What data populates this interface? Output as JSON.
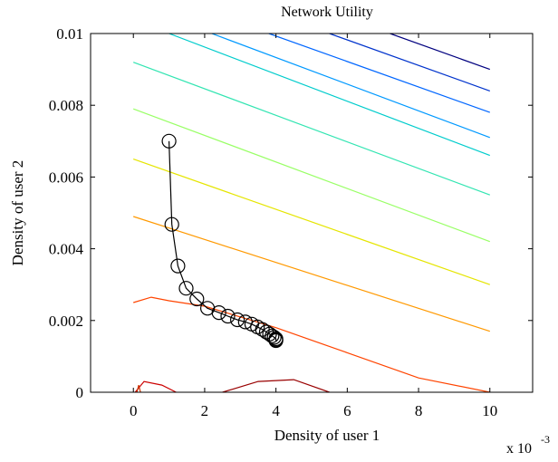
{
  "chart_data": {
    "type": "contour",
    "title": "Network Utility",
    "xlabel": "Density of user 1",
    "ylabel": "Density of user 2",
    "x_multiplier_label": "x 10",
    "x_multiplier_exponent": "-3",
    "x_multiplier": 0.001,
    "xlim": [
      -0.0012,
      0.0112
    ],
    "ylim": [
      0,
      0.01
    ],
    "grid": false,
    "xticks": [
      0,
      0.002,
      0.004,
      0.006,
      0.008,
      0.01
    ],
    "xtick_labels": [
      "0",
      "2",
      "4",
      "6",
      "8",
      "10"
    ],
    "yticks": [
      0,
      0.002,
      0.004,
      0.006,
      0.008,
      0.01
    ],
    "ytick_labels": [
      "0",
      "0.002",
      "0.004",
      "0.006",
      "0.008",
      "0.01"
    ],
    "contour_lines": [
      {
        "color": "#00007f",
        "points": [
          [
            0.0072,
            0.01
          ],
          [
            0.01,
            0.009
          ]
        ]
      },
      {
        "color": "#0033cc",
        "points": [
          [
            0.0055,
            0.01
          ],
          [
            0.01,
            0.0084
          ]
        ]
      },
      {
        "color": "#0066ff",
        "points": [
          [
            0.0038,
            0.01
          ],
          [
            0.01,
            0.0078
          ]
        ]
      },
      {
        "color": "#0099ff",
        "points": [
          [
            0.0022,
            0.01
          ],
          [
            0.01,
            0.0071
          ]
        ]
      },
      {
        "color": "#00cccc",
        "points": [
          [
            0.001,
            0.01
          ],
          [
            0.01,
            0.0066
          ]
        ]
      },
      {
        "color": "#33e5b2",
        "points": [
          [
            0,
            0.0092
          ],
          [
            0.01,
            0.0055
          ]
        ]
      },
      {
        "color": "#99ff66",
        "points": [
          [
            0,
            0.0079
          ],
          [
            0.01,
            0.0042
          ]
        ]
      },
      {
        "color": "#e5e500",
        "points": [
          [
            0,
            0.0065
          ],
          [
            0.01,
            0.003
          ]
        ]
      },
      {
        "color": "#ff9900",
        "points": [
          [
            0,
            0.0049
          ],
          [
            0.01,
            0.0017
          ]
        ]
      },
      {
        "color": "#ff4400",
        "points": [
          [
            0,
            0.0025
          ],
          [
            0.0005,
            0.00265
          ],
          [
            0.001,
            0.00255
          ],
          [
            0.002,
            0.0024
          ],
          [
            0.004,
            0.0018
          ],
          [
            0.006,
            0.0011
          ],
          [
            0.008,
            0.0004
          ],
          [
            0.01,
            0.0
          ]
        ]
      },
      {
        "color": "#cc0000",
        "points": [
          [
            5e-05,
            0.0
          ],
          [
            0.0003,
            0.0003
          ],
          [
            0.0008,
            0.0002
          ],
          [
            0.0012,
            0.0
          ]
        ]
      },
      {
        "color": "#990000",
        "points": [
          [
            0.0025,
            0.0
          ],
          [
            0.0035,
            0.0003
          ],
          [
            0.0045,
            0.00035
          ],
          [
            0.0055,
            0.0
          ]
        ]
      },
      {
        "color": "#cc3300",
        "points": [
          [
            0.0001,
            0.0
          ],
          [
            0.00015,
            0.0002
          ],
          [
            0.0002,
            0.0
          ]
        ]
      }
    ],
    "series": [
      {
        "marker": "circle",
        "color": "#000000",
        "points": [
          [
            0.001,
            0.007
          ],
          [
            0.00108,
            0.00468
          ],
          [
            0.00125,
            0.00352
          ],
          [
            0.00148,
            0.0029
          ],
          [
            0.00178,
            0.0026
          ],
          [
            0.00208,
            0.00234
          ],
          [
            0.0024,
            0.00222
          ],
          [
            0.00265,
            0.00212
          ],
          [
            0.00292,
            0.00202
          ],
          [
            0.00314,
            0.00196
          ],
          [
            0.00332,
            0.0019
          ],
          [
            0.00348,
            0.00182
          ],
          [
            0.00362,
            0.00175
          ],
          [
            0.00373,
            0.00168
          ],
          [
            0.00382,
            0.00162
          ],
          [
            0.00389,
            0.00157
          ],
          [
            0.00395,
            0.00153
          ],
          [
            0.004,
            0.00149
          ],
          [
            0.004,
            0.00146
          ],
          [
            0.004,
            0.00144
          ]
        ]
      }
    ]
  }
}
